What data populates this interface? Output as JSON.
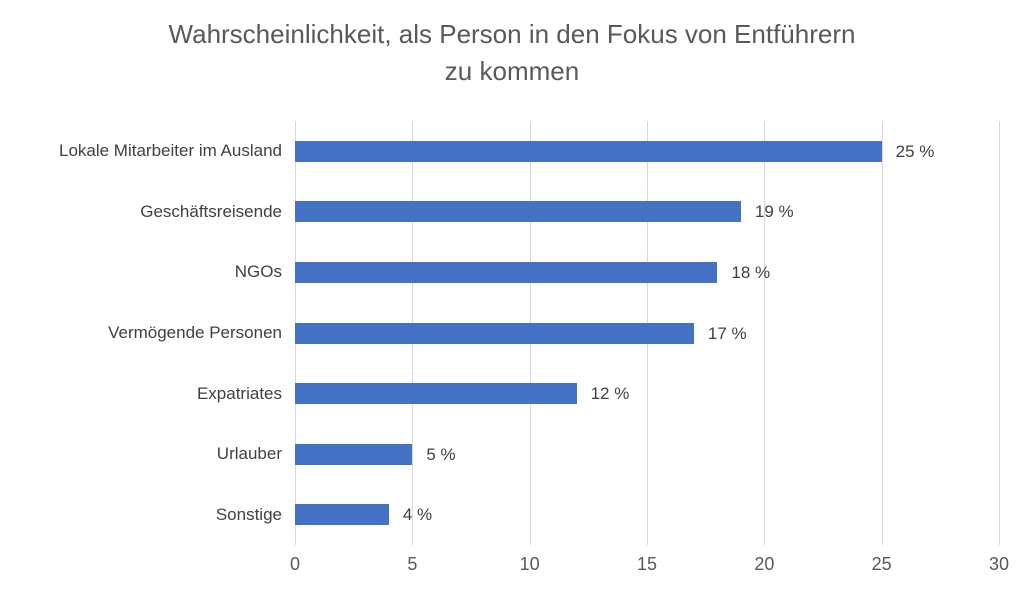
{
  "title_lines": [
    "Wahrscheinlichkeit, als Person in den Fokus von Entführern",
    "zu kommen"
  ],
  "chart_data": {
    "type": "bar",
    "orientation": "horizontal",
    "title": "Wahrscheinlichkeit, als Person in den Fokus von Entführern zu kommen",
    "categories": [
      "Lokale Mitarbeiter im Ausland",
      "Geschäftsreisende",
      "NGOs",
      "Vermögende Personen",
      "Expatriates",
      "Urlauber",
      "Sonstige"
    ],
    "values": [
      25,
      19,
      18,
      17,
      12,
      5,
      4
    ],
    "data_labels": [
      "25 %",
      "19 %",
      "18 %",
      "17 %",
      "12 %",
      "5 %",
      "4 %"
    ],
    "xlabel": "",
    "ylabel": "",
    "xlim": [
      0,
      30
    ],
    "x_ticks": [
      0,
      5,
      10,
      15,
      20,
      25,
      30
    ],
    "grid": true,
    "legend_position": "none",
    "bar_color": "#4472C4",
    "gridline_color": "#D9D9D9",
    "title_color": "#595959",
    "label_color": "#404040",
    "tick_color": "#595959",
    "background_color": "#FFFFFF"
  }
}
